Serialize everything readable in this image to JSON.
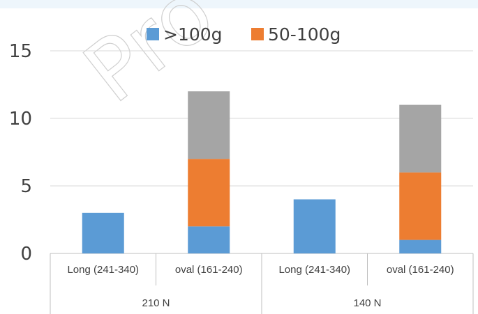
{
  "chart_data": {
    "type": "bar",
    "stacked": true,
    "title": "",
    "xlabel": "",
    "ylabel": "",
    "ylim": [
      0,
      15
    ],
    "yticks": [
      0,
      5,
      10,
      15
    ],
    "grid": true,
    "legend_position": "top",
    "categories": [
      "Long (241-340)",
      "oval (161-240)",
      "Long (241-340)",
      "oval (161-240)"
    ],
    "groups": [
      {
        "label": "210 N"
      },
      {
        "label": "140 N"
      }
    ],
    "series": [
      {
        "name": ">100g",
        "color": "#5b9bd5",
        "values": [
          3,
          2,
          4,
          1
        ]
      },
      {
        "name": "50-100g",
        "color": "#ed7d31",
        "values": [
          0,
          5,
          0,
          5
        ]
      },
      {
        "color": "#a5a5a5",
        "values": [
          0,
          5,
          0,
          5
        ]
      }
    ],
    "watermark": "Pro"
  }
}
